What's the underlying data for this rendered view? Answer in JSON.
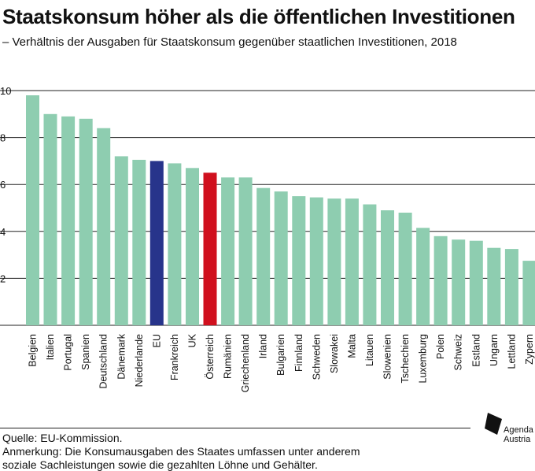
{
  "title": "Staatskonsum höher als die öffentlichen Investitionen",
  "subtitle": "– Verhältnis der Ausgaben für Staatskonsum gegenüber staatlichen Investitionen, 2018",
  "source": "Quelle: EU-Kommission.",
  "note_line1": "Anmerkung: Die Konsumausgaben des Staates umfassen unter anderem",
  "note_line2": "soziale Sachleistungen sowie die gezahlten Löhne und Gehälter.",
  "logo": {
    "line1": "Agenda",
    "line2": "Austria"
  },
  "colors": {
    "default": "#8ecdb0",
    "eu": "#27348b",
    "austria": "#d0101e",
    "grid": "#222222"
  },
  "chart_data": {
    "type": "bar",
    "categories": [
      "Belgien",
      "Italien",
      "Portugal",
      "Spanien",
      "Deutschland",
      "Dänemark",
      "Niederlande",
      "EU",
      "Frankreich",
      "UK",
      "Österreich",
      "Rumänien",
      "Griechenland",
      "Irland",
      "Bulgarien",
      "Finnland",
      "Schweden",
      "Slowakei",
      "Malta",
      "Litauen",
      "Slowenien",
      "Tschechien",
      "Luxemburg",
      "Polen",
      "Schweiz",
      "Estland",
      "Ungarn",
      "Lettland",
      "Zypern"
    ],
    "values": [
      9.8,
      9.0,
      8.9,
      8.8,
      8.4,
      7.2,
      7.05,
      7.0,
      6.9,
      6.7,
      6.5,
      6.3,
      6.3,
      5.85,
      5.7,
      5.5,
      5.45,
      5.4,
      5.4,
      5.15,
      4.9,
      4.8,
      4.15,
      3.8,
      3.65,
      3.6,
      3.3,
      3.25,
      2.75
    ],
    "highlight": {
      "EU": "eu",
      "Österreich": "austria"
    },
    "yticks": [
      2,
      4,
      6,
      8,
      10
    ],
    "ylim": [
      0,
      10
    ],
    "xlabel": "",
    "ylabel": "",
    "grid": true
  }
}
